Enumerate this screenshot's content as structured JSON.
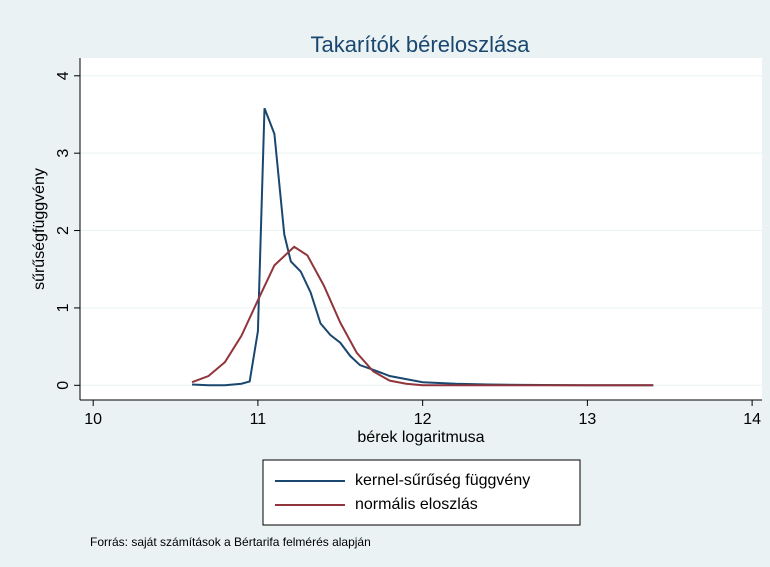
{
  "chart_data": {
    "type": "line",
    "title": "Takarítók béreloszlása",
    "x_label": "bérek logaritmusa",
    "y_label": "sűrűségfüggvény",
    "note": "Forrás: saját számítások a Bértarifa felmérés alapján",
    "xlim": [
      9.92,
      14.06
    ],
    "xticks": [
      10,
      11,
      12,
      13,
      14
    ],
    "ylim": [
      -0.19,
      4.23
    ],
    "yticks": [
      0,
      1,
      2,
      3,
      4
    ],
    "grid": true,
    "series": [
      {
        "name": "kernel-sűrűség függvény",
        "color": "#1a476f",
        "x": [
          10.6,
          10.7,
          10.8,
          10.9,
          10.95,
          11.0,
          11.04,
          11.1,
          11.16,
          11.2,
          11.26,
          11.32,
          11.38,
          11.44,
          11.5,
          11.56,
          11.62,
          11.7,
          11.8,
          11.9,
          12.0,
          12.2,
          12.4,
          12.6,
          13.0,
          13.4
        ],
        "values": [
          0.01,
          0.0,
          0.0,
          0.02,
          0.05,
          0.7,
          3.58,
          3.25,
          1.95,
          1.6,
          1.47,
          1.2,
          0.8,
          0.65,
          0.55,
          0.38,
          0.26,
          0.2,
          0.12,
          0.08,
          0.04,
          0.02,
          0.01,
          0.005,
          0.0,
          0.0
        ]
      },
      {
        "name": "normális eloszlás",
        "color": "#90353b",
        "x": [
          10.6,
          10.7,
          10.8,
          10.9,
          11.0,
          11.1,
          11.22,
          11.3,
          11.4,
          11.5,
          11.6,
          11.7,
          11.8,
          11.9,
          12.0,
          12.5,
          13.0,
          13.4
        ],
        "values": [
          0.04,
          0.12,
          0.3,
          0.64,
          1.1,
          1.55,
          1.79,
          1.68,
          1.29,
          0.81,
          0.42,
          0.18,
          0.06,
          0.02,
          0.0,
          0.0,
          0.0,
          0.0
        ]
      }
    ]
  }
}
